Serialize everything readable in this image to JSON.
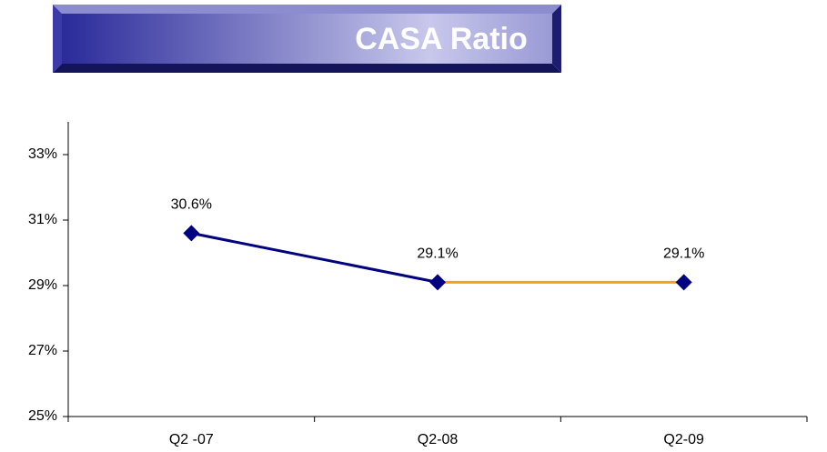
{
  "chart_data": {
    "type": "line",
    "title": "CASA Ratio",
    "categories": [
      "Q2 -07",
      "Q2-08",
      "Q2-09"
    ],
    "values": [
      30.6,
      29.1,
      29.1
    ],
    "value_labels": [
      "30.6%",
      "29.1%",
      "29.1%"
    ],
    "color": "#000080",
    "segment_colors": [
      "#000080",
      "#f5a21b"
    ],
    "ylim": [
      25,
      34
    ],
    "yticks": [
      {
        "value": 25,
        "label": "25%"
      },
      {
        "value": 27,
        "label": "27%"
      },
      {
        "value": 29,
        "label": "29%"
      },
      {
        "value": 31,
        "label": "31%"
      },
      {
        "value": 33,
        "label": "33%"
      }
    ],
    "grid": false
  }
}
